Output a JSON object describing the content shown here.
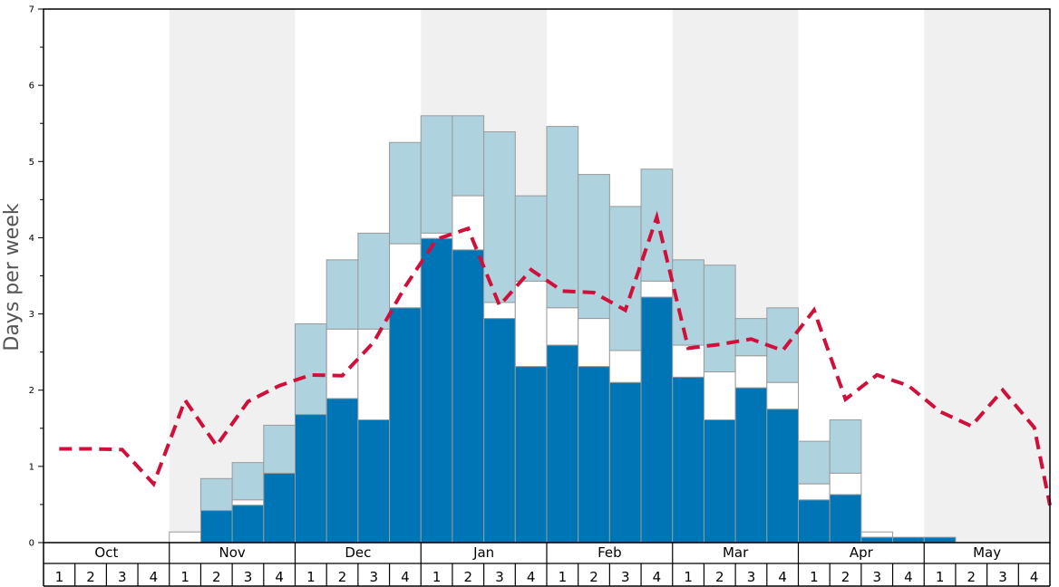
{
  "chart_data": {
    "type": "bar",
    "ylabel": "Days per week",
    "ylim": [
      0,
      7
    ],
    "y_ticks": [
      "0",
      "1",
      "2",
      "3",
      "4",
      "5",
      "6",
      "7"
    ],
    "months": [
      "Oct",
      "Nov",
      "Dec",
      "Jan",
      "Feb",
      "Mar",
      "Apr",
      "May"
    ],
    "week_labels": [
      "1",
      "2",
      "3",
      "4"
    ],
    "colors": {
      "dark": "#0075b6",
      "white": "#ffffff",
      "light": "#aed2de",
      "line": "#d0103a",
      "band": "#f0f0f0",
      "bar_edge": "#9a9a9a"
    },
    "series": [
      {
        "values": [
          0,
          0,
          0,
          0,
          0,
          0.42,
          0.49,
          0.91,
          1.68,
          1.89,
          1.61,
          3.08,
          3.99,
          3.84,
          2.94,
          2.31,
          2.59,
          2.31,
          2.1,
          3.22,
          2.17,
          1.61,
          2.03,
          1.75,
          0.56,
          0.63,
          0.07,
          0.07,
          0.07,
          0,
          0,
          0
        ]
      },
      {
        "values": [
          0,
          0,
          0,
          0,
          0.14,
          0.42,
          0.56,
          0.91,
          1.68,
          2.8,
          2.8,
          3.92,
          4.06,
          4.55,
          3.15,
          3.43,
          3.08,
          2.94,
          2.52,
          3.43,
          2.59,
          2.24,
          2.45,
          2.1,
          0.77,
          0.91,
          0.14,
          0.07,
          0.07,
          0,
          0,
          0
        ]
      },
      {
        "values": [
          0,
          0,
          0,
          0,
          0.14,
          0.84,
          1.05,
          1.54,
          2.87,
          3.71,
          4.06,
          5.25,
          5.6,
          5.6,
          5.39,
          4.55,
          5.46,
          4.83,
          4.41,
          4.9,
          3.71,
          3.64,
          2.94,
          3.08,
          1.33,
          1.61,
          0.14,
          0.07,
          0.07,
          0,
          0,
          0
        ]
      },
      {
        "values": [
          1.23,
          1.23,
          1.22,
          0.77,
          1.87,
          1.27,
          1.85,
          2.06,
          2.2,
          2.19,
          2.63,
          3.36,
          3.98,
          4.12,
          3.11,
          3.58,
          3.3,
          3.28,
          3.05,
          4.27,
          2.55,
          2.6,
          2.67,
          2.52,
          3.05,
          1.88,
          2.2,
          2.06,
          1.72,
          1.53,
          2.0,
          1.51
        ]
      }
    ]
  }
}
